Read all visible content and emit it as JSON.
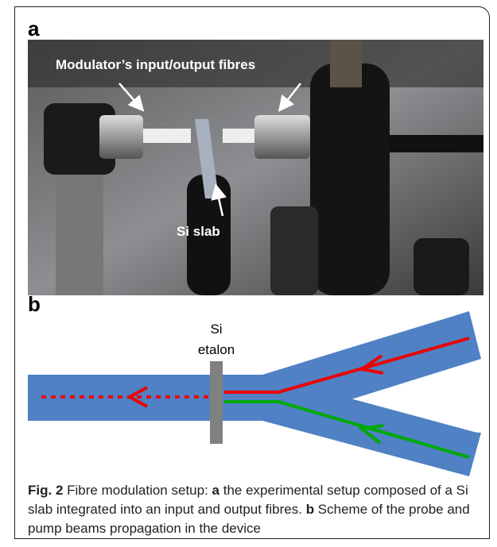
{
  "panel_a": {
    "label": "a",
    "annotations": [
      "Modulator’s input/output fibres",
      "Si slab"
    ]
  },
  "panel_b": {
    "label": "b",
    "etalon_label": [
      "Si",
      "etalon"
    ]
  },
  "caption": {
    "figure": "Fig. 2",
    "parts": [
      "Fibre modulation setup: ",
      "a",
      " the experimental setup composed of a Si slab integrated into an input and output fibres. ",
      "b",
      " Scheme of the probe and pump beams propagation in the device"
    ]
  }
}
